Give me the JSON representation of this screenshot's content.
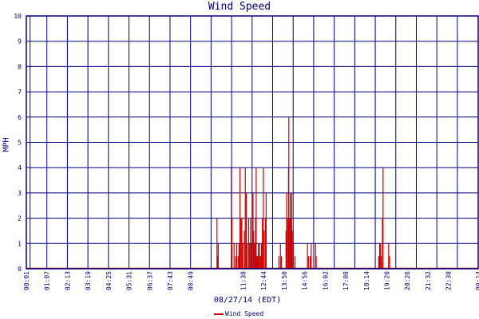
{
  "chart_data": {
    "type": "bar",
    "title": "Wind Speed",
    "xlabel": "08/27/14 (EDT)",
    "ylabel": "MPH",
    "ylim": [
      0,
      10
    ],
    "yticks": [
      0,
      1,
      2,
      3,
      4,
      5,
      6,
      7,
      8,
      9,
      10
    ],
    "xticks": [
      "00:01",
      "01:07",
      "02:13",
      "03:19",
      "04:25",
      "05:31",
      "06:37",
      "07:43",
      "08:49",
      "09:55",
      "11:01",
      "12:07",
      "13:13",
      "14:19",
      "15:25",
      "16:31",
      "17:37",
      "18:43",
      "19:49",
      "20:55",
      "22:01",
      "23:07",
      "00:13"
    ],
    "xtick_labels": [
      "00:01",
      "01:07",
      "02:13",
      "03:19",
      "04:25",
      "05:31",
      "06:37",
      "07:43",
      "08:49",
      "11:38",
      "12:44",
      "13:50",
      "14:56",
      "16:02",
      "17:08",
      "18:14",
      "19:20",
      "20:26",
      "21:32",
      "22:38",
      "00:14"
    ],
    "x_start": "00:01",
    "x_end": "00:14",
    "grid": true,
    "legend_position": "bottom-center",
    "series": [
      {
        "name": "Wind Speed",
        "color": "#cc0000",
        "points": [
          [
            "10:14",
            2
          ],
          [
            "10:16",
            0.5
          ],
          [
            "10:18",
            1
          ],
          [
            "11:00",
            4
          ],
          [
            "11:02",
            2
          ],
          [
            "11:09",
            1
          ],
          [
            "11:14",
            0.5
          ],
          [
            "11:17",
            1
          ],
          [
            "11:22",
            0.5
          ],
          [
            "11:25",
            1
          ],
          [
            "11:28",
            4
          ],
          [
            "11:31",
            2
          ],
          [
            "11:34",
            2
          ],
          [
            "11:37",
            1
          ],
          [
            "11:42",
            1.5
          ],
          [
            "11:45",
            4
          ],
          [
            "11:48",
            3
          ],
          [
            "11:51",
            1
          ],
          [
            "11:56",
            2
          ],
          [
            "11:59",
            1
          ],
          [
            "12:02",
            2
          ],
          [
            "12:04",
            1
          ],
          [
            "12:06",
            1
          ],
          [
            "12:10",
            3
          ],
          [
            "12:12",
            1.5
          ],
          [
            "12:15",
            1
          ],
          [
            "12:18",
            2
          ],
          [
            "12:20",
            4
          ],
          [
            "12:22",
            0.5
          ],
          [
            "12:24",
            0.5
          ],
          [
            "12:27",
            1
          ],
          [
            "12:29",
            0.5
          ],
          [
            "12:31",
            1
          ],
          [
            "12:34",
            0.5
          ],
          [
            "12:37",
            1
          ],
          [
            "12:40",
            2
          ],
          [
            "12:43",
            4
          ],
          [
            "12:46",
            1.5
          ],
          [
            "12:50",
            2
          ],
          [
            "12:52",
            3
          ],
          [
            "13:33",
            0.5
          ],
          [
            "13:38",
            1
          ],
          [
            "13:41",
            0.5
          ],
          [
            "13:56",
            1.5
          ],
          [
            "13:58",
            3
          ],
          [
            "14:01",
            2
          ],
          [
            "14:04",
            4
          ],
          [
            "14:05",
            6
          ],
          [
            "14:08",
            2
          ],
          [
            "14:10",
            3
          ],
          [
            "14:12",
            2
          ],
          [
            "14:14",
            3
          ],
          [
            "14:16",
            1.5
          ],
          [
            "14:20",
            1
          ],
          [
            "14:25",
            0.5
          ],
          [
            "15:05",
            1
          ],
          [
            "15:08",
            0.5
          ],
          [
            "15:14",
            0.5
          ],
          [
            "15:17",
            1
          ],
          [
            "15:31",
            1
          ],
          [
            "15:33",
            0.5
          ],
          [
            "18:54",
            0.5
          ],
          [
            "18:57",
            1
          ],
          [
            "19:00",
            1
          ],
          [
            "19:02",
            0.5
          ],
          [
            "19:06",
            2
          ],
          [
            "19:08",
            4
          ],
          [
            "19:26",
            1
          ],
          [
            "19:29",
            0.5
          ]
        ]
      }
    ]
  }
}
